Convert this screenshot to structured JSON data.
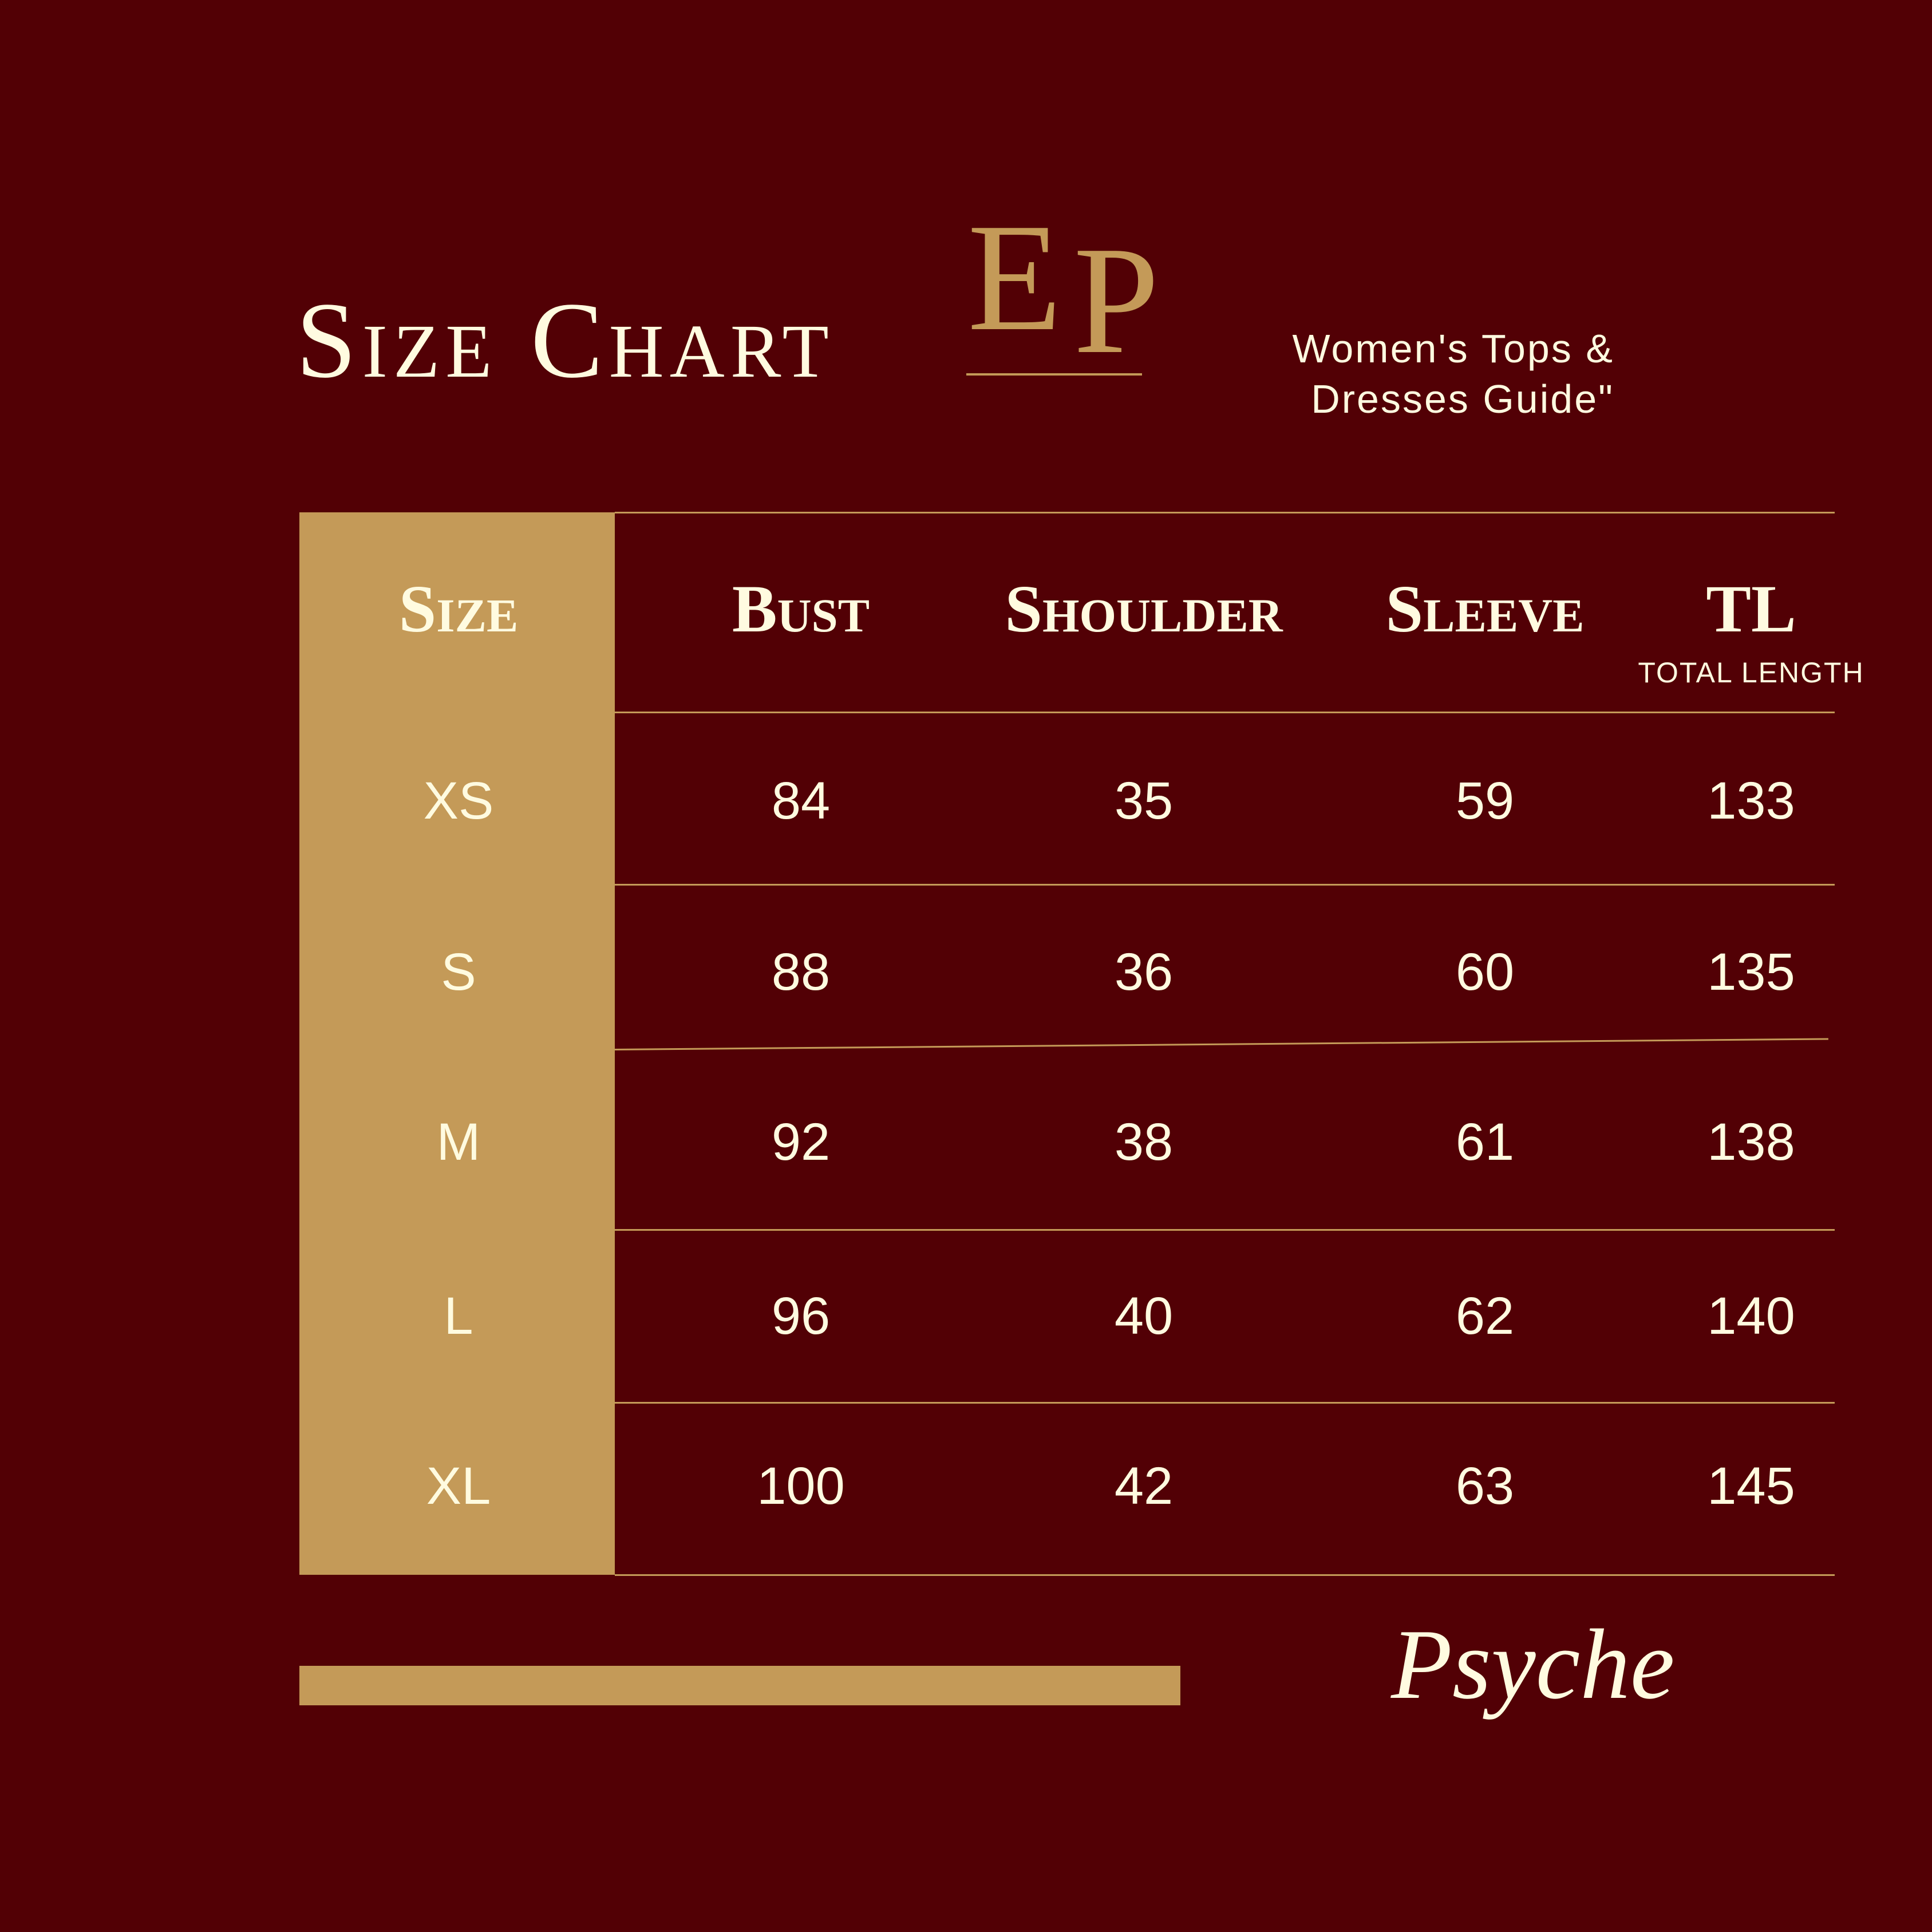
{
  "title": "Size Chart",
  "logo": {
    "text": "EP",
    "color": "#C49A58"
  },
  "subtitle": {
    "line1": "Women's Tops &",
    "line2": "Dresses Guide\""
  },
  "colors": {
    "background": "#520005",
    "accent": "#C49A58",
    "text": "#FFFBE0"
  },
  "table": {
    "headers": [
      "Size",
      "Bust",
      "Shoulder",
      "Sleeve",
      "TL"
    ],
    "tl_subtitle": "TOTAL LENGTH",
    "rows": [
      [
        "XS",
        "84",
        "35",
        "59",
        "133"
      ],
      [
        "S",
        "88",
        "36",
        "60",
        "135"
      ],
      [
        "M",
        "92",
        "38",
        "61",
        "138"
      ],
      [
        "L",
        "96",
        "40",
        "62",
        "140"
      ],
      [
        "XL",
        "100",
        "42",
        "63",
        "145"
      ]
    ]
  },
  "signature": "Psyche"
}
